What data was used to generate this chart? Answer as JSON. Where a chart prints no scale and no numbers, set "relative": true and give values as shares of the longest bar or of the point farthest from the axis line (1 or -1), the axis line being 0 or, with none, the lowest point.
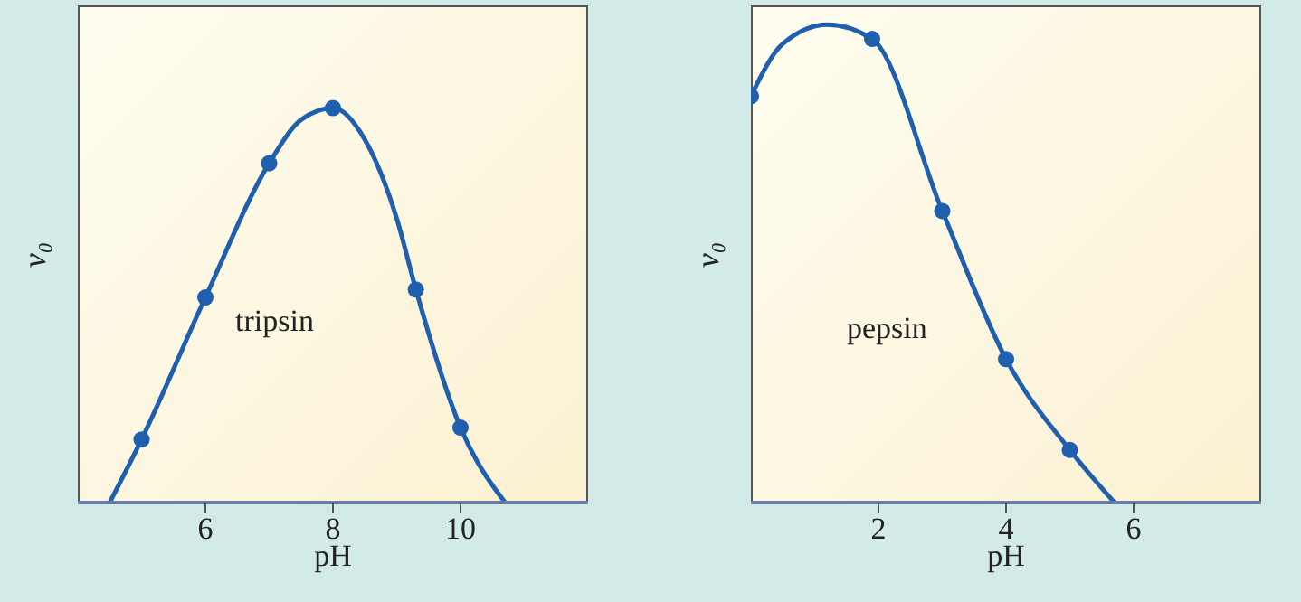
{
  "chart_data": [
    {
      "type": "line",
      "relative": true,
      "ylabel": "v₀",
      "xlabel": "pH",
      "xlim": [
        4,
        12
      ],
      "xticks": [
        6,
        8,
        10
      ],
      "tick_labels": "x",
      "annotations": [
        "tripsin"
      ],
      "series": [
        {
          "color": "#1f5fae",
          "marker": "none",
          "x": [
            4.5,
            5,
            6,
            7,
            7.5,
            8,
            8.5,
            9,
            9.3,
            10,
            10.7
          ],
          "values": [
            0,
            0.16,
            0.52,
            0.86,
            0.97,
            1,
            0.92,
            0.72,
            0.54,
            0.19,
            0
          ]
        },
        {
          "type": "scatter",
          "color": "#1f5fae",
          "marker": "circle",
          "x": [
            5,
            6,
            7,
            8,
            9.3,
            10
          ],
          "values": [
            0.16,
            0.52,
            0.86,
            1,
            0.54,
            0.19
          ]
        }
      ]
    },
    {
      "type": "line",
      "relative": true,
      "ylabel": "v₀",
      "xlabel": "pH",
      "xlim": [
        0,
        8
      ],
      "xticks": [
        2,
        4,
        6
      ],
      "tick_labels": "x",
      "annotations": [
        "pepsin"
      ],
      "series": [
        {
          "color": "#1f5fae",
          "marker": "none",
          "x": [
            0,
            0.5,
            1.2,
            1.9,
            3,
            4,
            5,
            5.7
          ],
          "values": [
            0.85,
            0.96,
            1,
            0.97,
            0.61,
            0.3,
            0.11,
            0
          ]
        },
        {
          "type": "scatter",
          "color": "#1f5fae",
          "marker": "circle",
          "x": [
            0,
            1.9,
            3,
            4,
            5
          ],
          "values": [
            0.85,
            0.97,
            0.61,
            0.3,
            0.11
          ]
        }
      ]
    }
  ]
}
